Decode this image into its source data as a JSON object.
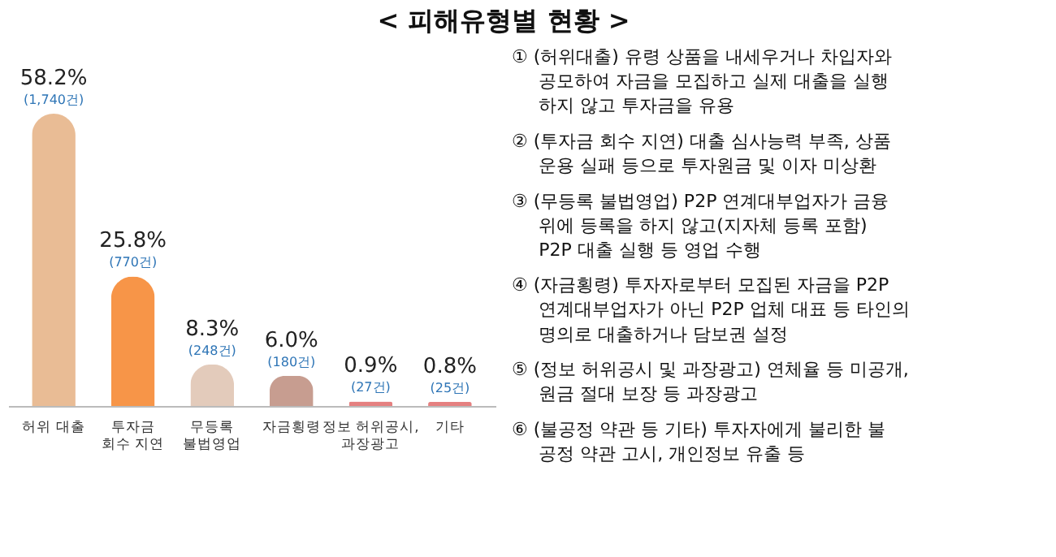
{
  "chart_data": {
    "type": "bar",
    "title": "< 피해유형별 현황 >",
    "categories": [
      "허위 대출",
      "투자금\n회수 지연",
      "무등록\n불법영업",
      "자금횡령",
      "정보 허위공시,\n과장광고",
      "기타"
    ],
    "values": [
      58.2,
      25.8,
      8.3,
      6.0,
      0.9,
      0.8
    ],
    "value_labels": [
      "58.2%",
      "25.8%",
      "8.3%",
      "6.0%",
      "0.9%",
      "0.8%"
    ],
    "colors": [
      "#e9bc95",
      "#f79548",
      "#e3cbbb",
      "#c79d90",
      "#e58080",
      "#e58080"
    ],
    "annotations": [
      {
        "text": "(1,740건)",
        "x": "허위 대출",
        "y": 58.2
      },
      {
        "text": "(770건)",
        "x": "투자금\n회수 지연",
        "y": 25.8
      },
      {
        "text": "(248건)",
        "x": "무등록\n불법영업",
        "y": 8.3
      },
      {
        "text": "(180건)",
        "x": "자금횡령",
        "y": 6.0
      },
      {
        "text": "(27건)",
        "x": "정보 허위공시,\n과장광고",
        "y": 0.9
      },
      {
        "text": "(25건)",
        "x": "기타",
        "y": 0.8
      },
      "① (허위대출) 유령 상품을 내세우거나 차입자와\n공모하여 자금을 모집하고 실제 대출을 실행\n하지 않고 투자금을 유용",
      "② (투자금 회수 지연) 대출 심사능력 부족, 상품\n운용 실패 등으로 투자원금 및 이자 미상환",
      "③ (무등록 불법영업) P2P 연계대부업자가 금융\n위에 등록을 하지 않고(지자체 등록 포함)\nP2P 대출 실행 등 영업 수행",
      "④ (자금횡령) 투자자로부터 모집된 자금을 P2P\n연계대부업자가 아닌 P2P 업체 대표 등 타인의\n명의로 대출하거나 담보권 설정",
      "⑤ (정보 허위공시 및 과장광고) 연체율 등 미공개,\n원금 절대 보장 등 과장광고",
      "⑥ (불공정 약관 등 기타) 투자자에게 불리한 불\n공정 약관 고시, 개인정보 유출 등"
    ]
  }
}
